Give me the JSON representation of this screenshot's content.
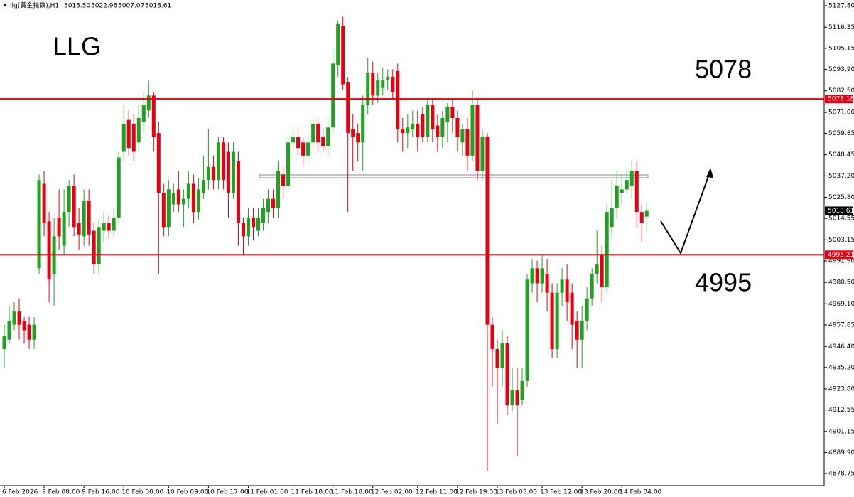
{
  "chart_data": {
    "type": "candlestick",
    "title": "llg(黄金指数),H1",
    "header_values": [
      "5015.50",
      "5022.96",
      "5007.07",
      "5018.61"
    ],
    "annotations": [
      "LLG",
      "5078",
      "4995"
    ],
    "categories": [
      "6 Feb 2026",
      null,
      null,
      null,
      null,
      null,
      null,
      null,
      "9 Feb 08:00",
      null,
      null,
      null,
      null,
      null,
      null,
      null,
      "9 Feb 16:00",
      null,
      null,
      null,
      null,
      null,
      null,
      null,
      "10 Feb 00:00",
      null,
      null,
      null,
      null,
      null,
      null,
      null,
      null,
      "10 Feb 09:00",
      null,
      null,
      null,
      null,
      null,
      null,
      null,
      "10 Feb 17:00",
      null,
      null,
      null,
      null,
      null,
      null,
      null,
      "11 Feb 01:00",
      null,
      null,
      null,
      null,
      null,
      null,
      null,
      null,
      "11 Feb 10:00",
      null,
      null,
      null,
      null,
      null,
      null,
      null,
      "11 Feb 18:00",
      null,
      null,
      null,
      null,
      null,
      null,
      null,
      "12 Feb 02:00",
      null,
      null,
      null,
      null,
      null,
      null,
      null,
      null,
      "12 Feb 11:00",
      null,
      null,
      null,
      null,
      null,
      null,
      null,
      "12 Feb 19:00",
      null,
      null,
      null,
      null,
      null,
      null,
      null,
      "13 Feb 03:00",
      null,
      null,
      null,
      null,
      null,
      null,
      null,
      null,
      "13 Feb 12:00",
      null,
      null,
      null,
      null,
      null,
      null,
      null,
      "13 Feb 20:00",
      null,
      null,
      null,
      null,
      null,
      null,
      null,
      "14 Feb 04:00",
      null,
      null,
      null,
      null,
      null
    ],
    "open": [
      4945,
      4950,
      4958,
      4965,
      4960,
      4958,
      4950,
      4988,
      5033,
      5013,
      4985,
      5015,
      5000,
      5018,
      5032,
      5012,
      5005,
      5024,
      5008,
      4990,
      5008,
      5012,
      5008,
      5015,
      5050,
      5067,
      5065,
      5055,
      5066,
      5072,
      5080,
      5060,
      5028,
      5010,
      5022,
      5030,
      5022,
      5025,
      5033,
      5018,
      5028,
      5035,
      5042,
      5035,
      5055,
      5050,
      5028,
      5045,
      5012,
      5005,
      5015,
      5008,
      5012,
      5018,
      5025,
      5020,
      5038,
      5032,
      5055,
      5058,
      5055,
      5048,
      5055,
      5065,
      5058,
      5053,
      5063,
      5096,
      5117,
      5087,
      5062,
      5060,
      5055,
      5075,
      5092,
      5080,
      5084,
      5088,
      5090,
      5093,
      5062,
      5060,
      5062,
      5065,
      5070,
      5058,
      5075,
      5064,
      5058,
      5066,
      5074,
      5068,
      5055,
      5062,
      5048,
      5075,
      5040,
      5058,
      4958,
      4945,
      4935,
      4948,
      4915,
      4923,
      4918,
      4928,
      4980,
      4988,
      4980,
      4985,
      4975,
      4945,
      4975,
      4982,
      4975,
      4960,
      4950,
      4960,
      4972,
      4985,
      4995,
      4978,
      5010,
      5020,
      5028,
      5030,
      5032,
      5040,
      5018,
      5015.5
    ],
    "high": [
      4958,
      4968,
      4970,
      4972,
      4962,
      4962,
      4962,
      5038,
      5040,
      5018,
      5015,
      5030,
      5030,
      5035,
      5038,
      5020,
      5030,
      5030,
      5012,
      5014,
      5018,
      5016,
      5020,
      5050,
      5075,
      5072,
      5070,
      5075,
      5082,
      5088,
      5082,
      5066,
      5033,
      5035,
      5033,
      5040,
      5030,
      5040,
      5038,
      5036,
      5048,
      5062,
      5048,
      5058,
      5058,
      5055,
      5055,
      5050,
      5015,
      5020,
      5020,
      5020,
      5025,
      5030,
      5030,
      5045,
      5042,
      5058,
      5062,
      5062,
      5058,
      5060,
      5068,
      5068,
      5063,
      5068,
      5105,
      5120,
      5122,
      5090,
      5070,
      5065,
      5080,
      5100,
      5098,
      5092,
      5095,
      5094,
      5094,
      5097,
      5068,
      5070,
      5072,
      5072,
      5074,
      5078,
      5078,
      5070,
      5072,
      5076,
      5078,
      5072,
      5065,
      5068,
      5083,
      5078,
      5062,
      5060,
      4962,
      4950,
      4955,
      4952,
      4935,
      4935,
      4935,
      4985,
      4993,
      4992,
      4995,
      4993,
      4980,
      4980,
      4988,
      4990,
      4980,
      4965,
      4968,
      4978,
      4988,
      5008,
      5000,
      5022,
      5035,
      5040,
      5038,
      5040,
      5045,
      5045,
      5022,
      5022.96
    ],
    "low": [
      4935,
      4948,
      4955,
      4950,
      4948,
      4945,
      4945,
      4985,
      5005,
      4970,
      4968,
      4998,
      4995,
      5010,
      5005,
      4998,
      5000,
      5000,
      4985,
      4985,
      5002,
      5004,
      5005,
      5012,
      5045,
      5048,
      5045,
      5050,
      5060,
      5068,
      5050,
      4985,
      5005,
      5005,
      5018,
      5018,
      5010,
      5020,
      5012,
      5014,
      5025,
      5030,
      5030,
      5030,
      5030,
      5015,
      5025,
      5000,
      4995,
      5000,
      5003,
      5005,
      5008,
      5012,
      5015,
      5015,
      5025,
      5028,
      5050,
      5048,
      5042,
      5045,
      5050,
      5050,
      5050,
      5048,
      5060,
      5090,
      5083,
      5018,
      5040,
      5045,
      5040,
      5070,
      5075,
      5076,
      5080,
      5083,
      5078,
      5055,
      5050,
      5052,
      5058,
      5050,
      5055,
      5055,
      5055,
      5050,
      5052,
      5055,
      5060,
      5050,
      5048,
      5040,
      5045,
      5035,
      5035,
      4880,
      4925,
      4905,
      4925,
      4910,
      4912,
      4888,
      4915,
      4925,
      4975,
      4970,
      4975,
      4965,
      4940,
      4940,
      4968,
      4960,
      4945,
      4935,
      4935,
      4955,
      4968,
      4980,
      4970,
      4975,
      5005,
      5015,
      5022,
      5028,
      5025,
      5010,
      5002,
      5007.07
    ],
    "close": [
      4952,
      4960,
      4965,
      4958,
      4955,
      4950,
      4958,
      5035,
      5012,
      4982,
      5005,
      5005,
      5018,
      5032,
      5010,
      5006,
      5024,
      5006,
      4990,
      5010,
      5012,
      5008,
      5015,
      5047,
      5065,
      5052,
      5050,
      5068,
      5075,
      5080,
      5058,
      5028,
      5010,
      5030,
      5028,
      5022,
      5025,
      5033,
      5018,
      5030,
      5035,
      5042,
      5035,
      5055,
      5035,
      5028,
      5050,
      5012,
      5005,
      5015,
      5010,
      5015,
      5020,
      5025,
      5020,
      5040,
      5032,
      5055,
      5058,
      5052,
      5048,
      5055,
      5065,
      5055,
      5053,
      5063,
      5097,
      5118,
      5086,
      5060,
      5058,
      5055,
      5075,
      5092,
      5080,
      5088,
      5088,
      5090,
      5082,
      5062,
      5060,
      5063,
      5065,
      5058,
      5058,
      5075,
      5062,
      5058,
      5068,
      5074,
      5068,
      5058,
      5062,
      5048,
      5075,
      5040,
      5058,
      4958,
      4945,
      4935,
      4948,
      4915,
      4923,
      4915,
      4928,
      4982,
      4988,
      4980,
      4988,
      4975,
      4945,
      4975,
      4982,
      4970,
      4958,
      4950,
      4960,
      4972,
      4985,
      4990,
      4978,
      5018,
      5020,
      5032,
      5030,
      5035,
      5040,
      5018,
      5012,
      5018.61
    ],
    "up_color": "#22a022",
    "down_color": "#e60012",
    "levels": [
      5078.18,
      4995.21
    ],
    "level_color": "#e60012",
    "ylim": [
      4872.31,
      5130.83
    ],
    "yticks": [
      {
        "value": 5127.8,
        "label": "5127.80"
      },
      5116.35,
      5105.15,
      {
        "value": 5093.9,
        "label": "5093.90"
      },
      {
        "value": 5082.5,
        "label": "5082.50"
      },
      {
        "value": 5071,
        "label": "5071.00"
      },
      5059.85,
      5048.45,
      {
        "value": 5037.2,
        "label": "5037.20"
      },
      {
        "value": 5025.8,
        "label": "5025.80"
      },
      5014.55,
      5003.15,
      {
        "value": 4991.9,
        "label": "4991.90"
      },
      {
        "value": 4980.5,
        "label": "4980.50"
      },
      {
        "value": 4969.1,
        "label": "4969.10"
      },
      4957.85,
      {
        "value": 4946.4,
        "label": "4946.40"
      },
      {
        "value": 4935.2,
        "label": "4935.20"
      },
      {
        "value": 4923.8,
        "label": "4923.80"
      },
      4912.55,
      4901.15,
      {
        "value": 4889.9,
        "label": "4889.90"
      },
      4878.75
    ]
  }
}
